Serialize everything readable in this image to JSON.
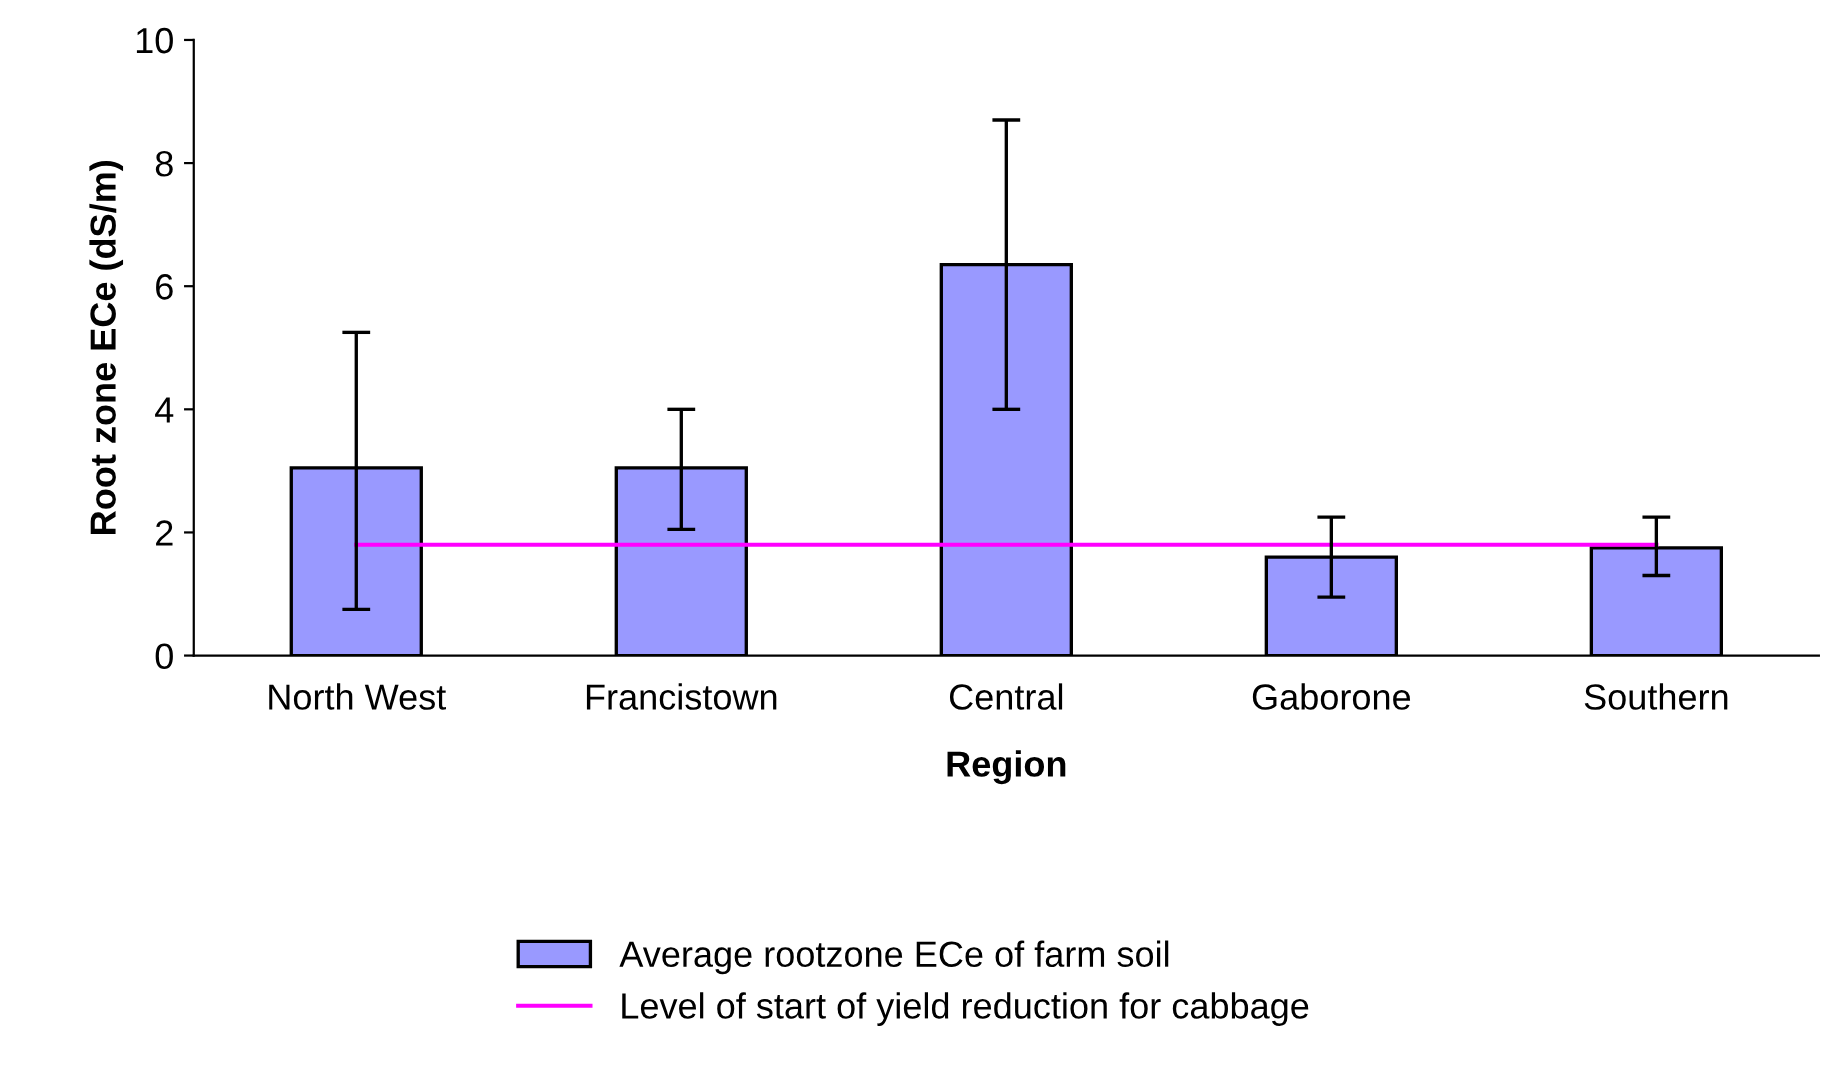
{
  "chart_data": {
    "type": "bar",
    "xlabel": "Region",
    "ylabel": "Root zone ECe (dS/m)",
    "categories": [
      "North West",
      "Francistown",
      "Central",
      "Gaborone",
      "Southern"
    ],
    "series": [
      {
        "name": "Average rootzone ECe of farm soil",
        "color": "#9999ff",
        "values": [
          3.05,
          3.05,
          6.35,
          1.6,
          1.75
        ],
        "errors": [
          [
            0.75,
            5.25
          ],
          [
            2.05,
            4.0
          ],
          [
            4.0,
            8.7
          ],
          [
            0.95,
            2.25
          ],
          [
            1.3,
            2.25
          ]
        ]
      },
      {
        "name": "Level of start of yield reduction for cabbage",
        "type": "line",
        "color": "#ff00ff",
        "values": [
          1.8,
          1.8,
          1.8,
          1.8,
          1.8
        ]
      }
    ],
    "ylim": [
      0,
      10
    ],
    "yticks": [
      0,
      2,
      4,
      6,
      8,
      10
    ],
    "grid": false,
    "legend": "bottom"
  }
}
